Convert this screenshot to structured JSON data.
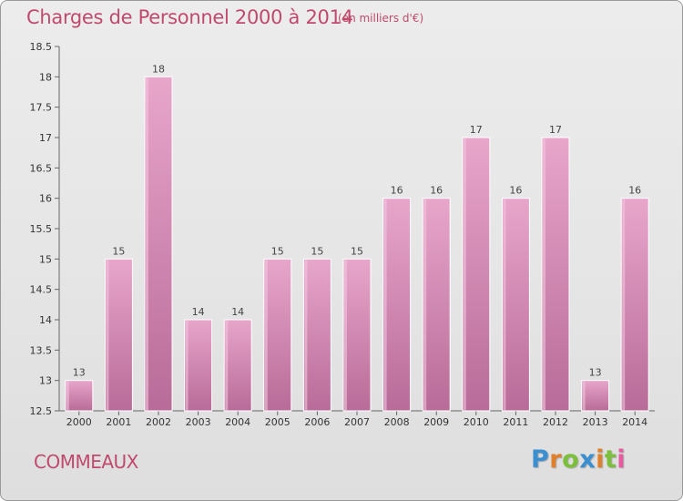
{
  "header": {
    "title": "Charges de Personnel 2000 à 2014",
    "subtitle": "(en milliers d'€)"
  },
  "footer": {
    "commune": "COMMEAUX",
    "logo_letters": [
      "P",
      "r",
      "o",
      "x",
      "i",
      "t",
      "i"
    ]
  },
  "colors": {
    "bar_light": "#e8a6cb",
    "bar_dark": "#b86b98",
    "title_color": "#c04a6e",
    "grid_color": "#cccccc"
  },
  "chart_data": {
    "type": "bar",
    "title": "Charges de Personnel 2000 à 2014",
    "subtitle": "(en milliers d'€)",
    "categories": [
      "2000",
      "2001",
      "2002",
      "2003",
      "2004",
      "2005",
      "2006",
      "2007",
      "2008",
      "2009",
      "2010",
      "2011",
      "2012",
      "2013",
      "2014"
    ],
    "values": [
      13,
      15,
      18,
      14,
      14,
      15,
      15,
      15,
      16,
      16,
      17,
      16,
      17,
      13,
      16
    ],
    "value_labels": [
      "13",
      "15",
      "18",
      "14",
      "14",
      "15",
      "15",
      "15",
      "16",
      "16",
      "17",
      "16",
      "17",
      "13",
      "16"
    ],
    "yticks": [
      "12.5",
      "13",
      "13.5",
      "14",
      "14.5",
      "15",
      "15.5",
      "16",
      "16.5",
      "17",
      "17.5",
      "18",
      "18.5"
    ],
    "ylim": [
      12.5,
      18.5
    ],
    "grid": false,
    "legend": "none"
  }
}
